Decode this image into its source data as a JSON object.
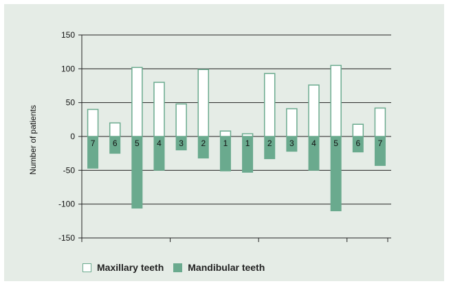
{
  "chart_data": {
    "type": "bar",
    "ylabel": "Number of patients",
    "ylim": [
      -150,
      150
    ],
    "yticks": [
      150,
      100,
      50,
      0,
      -50,
      -100,
      -150
    ],
    "categories": [
      "7",
      "6",
      "5",
      "4",
      "3",
      "2",
      "1",
      "1",
      "2",
      "3",
      "4",
      "5",
      "6",
      "7"
    ],
    "series": [
      {
        "name": "Maxillary teeth",
        "color": "#6aaa8e",
        "style": "outline",
        "values": [
          40,
          20,
          102,
          80,
          48,
          99,
          8,
          4,
          93,
          41,
          76,
          105,
          18,
          42
        ]
      },
      {
        "name": "Mandibular teeth",
        "color": "#6aaa8e",
        "style": "filled",
        "values": [
          -47,
          -25,
          -106,
          -50,
          -20,
          -32,
          -51,
          -53,
          -33,
          -22,
          -50,
          -110,
          -23,
          -43
        ]
      }
    ],
    "grid": true,
    "legend_position": "bottom-left"
  }
}
